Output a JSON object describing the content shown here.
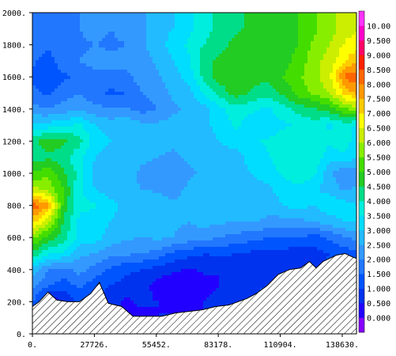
{
  "chart_data": {
    "type": "heatmap",
    "title": "",
    "xlabel": "",
    "ylabel": "",
    "xlim": [
      0,
      145000
    ],
    "ylim": [
      0,
      2000
    ],
    "x_ticks": [
      {
        "value": 0,
        "label": "0."
      },
      {
        "value": 27726,
        "label": "27726."
      },
      {
        "value": 55452,
        "label": "55452."
      },
      {
        "value": 83178,
        "label": "83178."
      },
      {
        "value": 110904,
        "label": "110904."
      },
      {
        "value": 138630,
        "label": "138630."
      }
    ],
    "y_ticks": [
      {
        "value": 0,
        "label": "0."
      },
      {
        "value": 200,
        "label": "200."
      },
      {
        "value": 400,
        "label": "400."
      },
      {
        "value": 600,
        "label": "600."
      },
      {
        "value": 800,
        "label": "800."
      },
      {
        "value": 1000,
        "label": "1000."
      },
      {
        "value": 1200,
        "label": "1200."
      },
      {
        "value": 1400,
        "label": "1400."
      },
      {
        "value": 1600,
        "label": "1600."
      },
      {
        "value": 1800,
        "label": "1800."
      },
      {
        "value": 2000,
        "label": "2000."
      }
    ],
    "colorbar": {
      "levels": [
        "0.000",
        "0.500",
        "1.000",
        "1.500",
        "2.000",
        "2.500",
        "3.000",
        "3.500",
        "4.000",
        "4.500",
        "5.000",
        "5.500",
        "6.000",
        "6.500",
        "7.000",
        "7.500",
        "8.000",
        "8.500",
        "9.000",
        "9.500",
        "10.00"
      ],
      "colors": [
        "#8800ff",
        "#2200ff",
        "#0033ee",
        "#0055ff",
        "#2277ff",
        "#3399ff",
        "#22bbff",
        "#00ddff",
        "#00eedd",
        "#00dd88",
        "#22cc22",
        "#44dd00",
        "#88ee00",
        "#ccee00",
        "#ffff00",
        "#ffcc00",
        "#ff9900",
        "#ff6600",
        "#ff2200",
        "#ff0066",
        "#ff00cc",
        "#ff33ff"
      ]
    },
    "field": {
      "x": [
        0,
        7000,
        14000,
        21000,
        28000,
        35000,
        42000,
        49000,
        56000,
        63000,
        70000,
        77000,
        84000,
        91000,
        98000,
        105000,
        112000,
        119000,
        126000,
        133000,
        140000,
        145000
      ],
      "y": [
        0,
        100,
        200,
        300,
        400,
        500,
        600,
        700,
        800,
        900,
        1000,
        1100,
        1200,
        1300,
        1400,
        1500,
        1600,
        1700,
        1800,
        1900,
        2000
      ],
      "values": [
        [
          1.0,
          0.8,
          0.9,
          1.0,
          0.6,
          0.4,
          0.5,
          0.3,
          0.5,
          0.6,
          0.4,
          0.5,
          0.7,
          0.9,
          1.1,
          1.3,
          1.5,
          1.8,
          1.9,
          2.0,
          2.2,
          2.3
        ],
        [
          1.0,
          0.8,
          0.9,
          1.0,
          0.6,
          0.4,
          0.5,
          0.3,
          0.5,
          0.6,
          0.4,
          0.5,
          0.7,
          0.9,
          1.1,
          1.3,
          1.5,
          1.8,
          1.9,
          2.0,
          2.2,
          2.3
        ],
        [
          1.6,
          0.2,
          0.4,
          1.2,
          0.8,
          0.7,
          0.4,
          0.6,
          0.5,
          0.3,
          0.4,
          0.5,
          0.7,
          0.9,
          1.1,
          1.3,
          1.6,
          1.8,
          2.0,
          2.1,
          2.3,
          2.4
        ],
        [
          2.2,
          1.6,
          1.2,
          1.6,
          1.2,
          1.0,
          0.8,
          0.7,
          0.3,
          0.1,
          0.4,
          0.3,
          0.5,
          0.6,
          0.8,
          1.0,
          1.2,
          1.3,
          1.4,
          1.2,
          1.6,
          1.8
        ],
        [
          2.8,
          2.0,
          1.8,
          2.2,
          1.8,
          1.4,
          1.1,
          1.0,
          0.8,
          0.6,
          0.4,
          0.6,
          0.5,
          0.7,
          0.9,
          0.8,
          0.7,
          0.9,
          1.0,
          1.1,
          1.4,
          1.5
        ],
        [
          4.4,
          3.6,
          3.4,
          2.6,
          2.5,
          2.2,
          2.1,
          2.0,
          1.8,
          1.4,
          1.2,
          1.0,
          1.1,
          1.0,
          0.9,
          0.8,
          0.9,
          0.6,
          0.8,
          1.0,
          1.2,
          1.4
        ],
        [
          5.6,
          4.8,
          4.2,
          3.4,
          3.2,
          2.8,
          2.6,
          2.5,
          2.6,
          2.5,
          2.3,
          2.2,
          2.0,
          1.8,
          1.7,
          1.5,
          1.4,
          1.6,
          1.2,
          1.6,
          2.0,
          2.1
        ],
        [
          7.2,
          6.2,
          4.4,
          3.4,
          3.2,
          3.0,
          2.8,
          3.0,
          2.8,
          2.6,
          2.5,
          2.7,
          2.6,
          2.5,
          2.6,
          2.4,
          2.3,
          2.4,
          2.5,
          2.8,
          3.0,
          3.0
        ],
        [
          8.4,
          7.6,
          4.8,
          3.6,
          3.6,
          3.2,
          2.8,
          3.0,
          2.8,
          2.6,
          2.7,
          2.8,
          2.9,
          3.0,
          2.7,
          2.7,
          3.0,
          3.2,
          3.0,
          3.4,
          3.2,
          3.0
        ],
        [
          6.2,
          5.8,
          5.0,
          3.6,
          3.0,
          2.7,
          2.6,
          2.5,
          2.4,
          2.3,
          2.6,
          2.7,
          2.8,
          3.0,
          2.8,
          2.9,
          3.2,
          3.4,
          3.1,
          2.8,
          2.4,
          2.6
        ],
        [
          5.0,
          5.4,
          4.6,
          3.8,
          2.8,
          2.7,
          2.7,
          2.4,
          2.3,
          2.0,
          2.4,
          2.6,
          2.6,
          2.8,
          3.0,
          3.2,
          3.6,
          3.8,
          3.6,
          2.6,
          2.0,
          2.2
        ],
        [
          4.2,
          4.4,
          4.2,
          3.6,
          3.0,
          2.8,
          2.9,
          2.6,
          2.5,
          2.4,
          2.6,
          2.7,
          2.8,
          2.8,
          3.2,
          3.4,
          3.8,
          4.0,
          3.8,
          3.2,
          3.4,
          3.0
        ],
        [
          4.4,
          4.8,
          4.6,
          4.2,
          3.2,
          3.0,
          2.9,
          2.8,
          2.7,
          2.6,
          2.6,
          2.8,
          3.0,
          3.2,
          3.4,
          3.6,
          3.8,
          3.9,
          3.8,
          3.6,
          3.8,
          3.2
        ],
        [
          3.0,
          3.2,
          3.4,
          3.6,
          3.0,
          2.8,
          2.9,
          2.6,
          2.6,
          2.7,
          2.8,
          2.9,
          3.2,
          3.6,
          3.2,
          3.0,
          3.4,
          3.6,
          3.8,
          3.4,
          3.8,
          3.4
        ],
        [
          2.2,
          2.0,
          2.2,
          2.4,
          2.2,
          2.0,
          2.1,
          1.8,
          2.0,
          2.4,
          2.6,
          2.8,
          3.4,
          3.8,
          3.6,
          3.4,
          3.8,
          4.2,
          4.4,
          4.8,
          5.4,
          5.8
        ],
        [
          1.6,
          1.4,
          1.8,
          2.0,
          1.6,
          1.4,
          1.5,
          2.0,
          2.2,
          2.6,
          2.8,
          3.6,
          4.2,
          4.8,
          4.4,
          4.2,
          4.6,
          5.2,
          5.6,
          6.0,
          7.2,
          7.6
        ],
        [
          1.4,
          1.2,
          1.4,
          1.6,
          1.8,
          1.8,
          1.9,
          2.2,
          2.4,
          2.8,
          3.2,
          4.2,
          4.8,
          4.6,
          4.8,
          4.6,
          5.0,
          5.4,
          5.8,
          6.4,
          8.2,
          8.2
        ],
        [
          1.6,
          1.3,
          1.8,
          2.0,
          2.2,
          2.2,
          2.1,
          2.3,
          2.6,
          3.0,
          3.4,
          4.4,
          4.6,
          4.8,
          5.0,
          4.8,
          4.8,
          5.2,
          5.8,
          6.2,
          7.0,
          7.4
        ],
        [
          1.8,
          1.6,
          1.7,
          1.9,
          2.0,
          1.9,
          2.0,
          2.4,
          2.8,
          3.2,
          3.6,
          4.0,
          4.4,
          4.6,
          4.8,
          4.9,
          4.8,
          5.0,
          5.6,
          6.0,
          6.6,
          6.8
        ],
        [
          2.0,
          1.9,
          1.8,
          2.0,
          2.2,
          2.0,
          2.2,
          2.4,
          2.8,
          3.0,
          3.4,
          3.8,
          4.2,
          4.4,
          4.6,
          4.8,
          4.9,
          5.0,
          5.4,
          5.8,
          6.2,
          6.4
        ],
        [
          2.0,
          1.9,
          1.8,
          2.0,
          2.2,
          2.0,
          2.2,
          2.4,
          2.8,
          3.0,
          3.4,
          3.8,
          4.2,
          4.4,
          4.6,
          4.8,
          4.9,
          5.0,
          5.4,
          5.8,
          6.2,
          6.4
        ]
      ]
    },
    "terrain": {
      "x": [
        0,
        3000,
        7000,
        11000,
        16000,
        21000,
        26000,
        30000,
        34000,
        40000,
        45000,
        52000,
        58000,
        64000,
        70000,
        76000,
        82000,
        88000,
        92000,
        96000,
        100000,
        105000,
        110000,
        115000,
        120000,
        124000,
        127000,
        130000,
        133000,
        136000,
        140000,
        143000,
        145000
      ],
      "y": [
        170,
        200,
        260,
        210,
        200,
        200,
        250,
        320,
        190,
        170,
        110,
        110,
        110,
        130,
        140,
        150,
        170,
        180,
        200,
        220,
        250,
        300,
        370,
        400,
        410,
        450,
        410,
        450,
        470,
        490,
        500,
        480,
        470
      ]
    }
  }
}
